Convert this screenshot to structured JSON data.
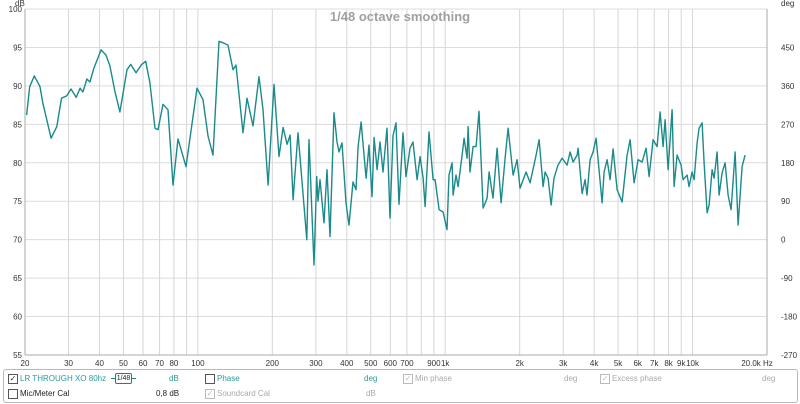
{
  "chart_data": {
    "type": "line",
    "title": "1/48 octave smoothing",
    "xlabel_unit": "Hz",
    "ylabel_left": "dB",
    "ylabel_right": "deg",
    "xscale": "log",
    "xlim": [
      20,
      20000
    ],
    "ylim": [
      55,
      100
    ],
    "ylim_right": [
      -270,
      540
    ],
    "grid": true,
    "y_ticks": [
      55,
      60,
      65,
      70,
      75,
      80,
      85,
      90,
      95,
      100
    ],
    "y_right_ticks": [
      450,
      360,
      270,
      180,
      90,
      0,
      -90,
      -180,
      -270
    ],
    "x_grid": [
      20,
      30,
      40,
      50,
      60,
      70,
      80,
      90,
      100,
      200,
      300,
      400,
      500,
      600,
      700,
      800,
      900,
      1000,
      2000,
      3000,
      4000,
      5000,
      6000,
      7000,
      8000,
      9000,
      10000,
      20000
    ],
    "x_tick_labels": [
      {
        "f": 20,
        "label": "20"
      },
      {
        "f": 30,
        "label": "30"
      },
      {
        "f": 40,
        "label": "40"
      },
      {
        "f": 50,
        "label": "50"
      },
      {
        "f": 60,
        "label": "60"
      },
      {
        "f": 70,
        "label": "70"
      },
      {
        "f": 80,
        "label": "80"
      },
      {
        "f": 100,
        "label": "100"
      },
      {
        "f": 200,
        "label": "200"
      },
      {
        "f": 300,
        "label": "300"
      },
      {
        "f": 400,
        "label": "400"
      },
      {
        "f": 500,
        "label": "500"
      },
      {
        "f": 600,
        "label": "600"
      },
      {
        "f": 700,
        "label": "700"
      },
      {
        "f": 900,
        "label": "900"
      },
      {
        "f": 1000,
        "label": "1k"
      },
      {
        "f": 2000,
        "label": "2k"
      },
      {
        "f": 3000,
        "label": "3k"
      },
      {
        "f": 4000,
        "label": "4k"
      },
      {
        "f": 5000,
        "label": "5k"
      },
      {
        "f": 6000,
        "label": "6k"
      },
      {
        "f": 7000,
        "label": "7k"
      },
      {
        "f": 8000,
        "label": "8k"
      },
      {
        "f": 9000,
        "label": "9k"
      },
      {
        "f": 10000,
        "label": "10k"
      },
      {
        "f": 20000,
        "label": "20,0k Hz"
      }
    ],
    "series": [
      {
        "name": "LR THROUGH XO 80hz",
        "color": "#1a8a8a",
        "x": [
          20.3,
          20.9,
          21.8,
          23.0,
          23.6,
          25.5,
          26.9,
          28.1,
          29.5,
          30.7,
          32.2,
          33.4,
          34.3,
          35.6,
          36.6,
          38.0,
          40.6,
          42.5,
          44.1,
          46.2,
          48.4,
          51.7,
          53.5,
          56.2,
          59.3,
          61.5,
          64.0,
          67.1,
          69.0,
          72.3,
          75.7,
          79.3,
          83.1,
          89.5,
          99.2,
          104.9,
          109.9,
          115.1,
          121.7,
          126.4,
          132.4,
          138.7,
          142.6,
          152.2,
          158.0,
          167.1,
          176.7,
          183.4,
          192.2,
          203.2,
          212.9,
          221.0,
          229.4,
          235.9,
          242.6,
          254.1,
          275.6,
          281.5,
          294.9,
          302.4,
          306.1,
          311.8,
          323.6,
          332.8,
          342.2,
          355.2,
          365.2,
          372.1,
          382.6,
          397.2,
          408.4,
          424.0,
          436.0,
          444.3,
          456.8,
          478.6,
          492.1,
          506.0,
          515.6,
          530.2,
          545.1,
          560.5,
          581.8,
          598.2,
          615.2,
          632.6,
          650.5,
          675.3,
          694.4,
          720.8,
          741.2,
          769.4,
          791.3,
          813.6,
          828.9,
          860.3,
          893.0,
          909.8,
          944.3,
          980.3,
          1017,
          1036,
          1066,
          1076,
          1106,
          1127,
          1170,
          1192,
          1226,
          1237,
          1260,
          1296,
          1333,
          1370,
          1423,
          1477,
          1504,
          1561,
          1621,
          1683,
          1747,
          1796,
          1881,
          1953,
          2007,
          2123,
          2204,
          2330,
          2396,
          2487,
          2534,
          2605,
          2679,
          2754,
          2859,
          2968,
          3110,
          3198,
          3288,
          3413,
          3445,
          3576,
          3677,
          3745,
          3852,
          3961,
          4073,
          4308,
          4389,
          4513,
          4641,
          4772,
          4954,
          5190,
          5437,
          5591,
          5803,
          6024,
          6253,
          6490,
          6674,
          6927,
          7190,
          7394,
          7603,
          7746,
          7965,
          8268,
          8423,
          8662,
          8991,
          9160,
          9508,
          9686,
          9960,
          10147,
          10434,
          10630,
          10931,
          11136,
          11451,
          11666,
          11997,
          12222,
          12567,
          12803,
          13166,
          13539,
          13922,
          14316,
          14860,
          15281,
          15859,
          16309
        ],
        "y": [
          86.2,
          89.9,
          91.3,
          89.9,
          87.8,
          83.2,
          84.7,
          88.4,
          88.7,
          89.6,
          88.5,
          89.7,
          89.2,
          90.9,
          90.5,
          92.3,
          94.7,
          94.0,
          92.6,
          89.3,
          86.6,
          92.1,
          92.8,
          91.7,
          92.8,
          93.2,
          90.4,
          84.5,
          84.3,
          87.6,
          86.9,
          77.1,
          83.1,
          79.5,
          89.7,
          88.2,
          83.5,
          81.0,
          95.8,
          95.6,
          95.3,
          92.1,
          92.7,
          83.9,
          88.4,
          84.8,
          91.2,
          86.9,
          77.1,
          90.2,
          80.8,
          84.6,
          82.4,
          83.6,
          75.2,
          83.9,
          70.0,
          83.0,
          66.7,
          78.2,
          75.0,
          77.8,
          72.2,
          79.1,
          70.4,
          86.5,
          82.7,
          81.4,
          82.6,
          74.8,
          71.9,
          77.5,
          76.5,
          82.1,
          85.3,
          78.0,
          82.3,
          75.6,
          83.3,
          79.1,
          82.7,
          78.8,
          84.5,
          72.8,
          83.5,
          85.2,
          74.6,
          83.9,
          78.2,
          81.9,
          82.7,
          77.8,
          80.8,
          78.0,
          74.3,
          84.0,
          77.8,
          77.8,
          73.9,
          73.6,
          71.3,
          78.4,
          80.0,
          75.8,
          78.4,
          76.9,
          81.0,
          83.2,
          80.6,
          84.7,
          78.8,
          82.1,
          82.1,
          86.7,
          74.1,
          75.4,
          78.8,
          75.4,
          81.9,
          74.8,
          80.6,
          84.5,
          78.4,
          80.4,
          76.7,
          78.8,
          77.4,
          81.0,
          83.0,
          76.9,
          78.8,
          78.0,
          74.5,
          78.0,
          79.7,
          80.6,
          79.7,
          81.4,
          80.1,
          81.0,
          81.9,
          76.0,
          77.8,
          75.8,
          80.4,
          81.4,
          83.2,
          74.8,
          78.8,
          80.4,
          77.8,
          81.8,
          76.5,
          74.9,
          81.0,
          83.0,
          77.4,
          80.4,
          80.1,
          81.9,
          78.2,
          83.0,
          82.1,
          86.6,
          82.1,
          85.6,
          79.1,
          86.9,
          76.9,
          81.0,
          79.7,
          77.8,
          78.4,
          76.9,
          78.8,
          77.8,
          82.6,
          84.5,
          85.2,
          80.0,
          73.5,
          74.5,
          79.1,
          78.0,
          81.4,
          75.8,
          78.7,
          80.0,
          75.8,
          73.9,
          81.4,
          71.9,
          79.5,
          81.0
        ]
      }
    ]
  },
  "panel": {
    "row1": {
      "measurement_label": "LR THROUGH XO 80hz",
      "measurement_checked": true,
      "smoothing": "1/48",
      "unit1": "dB",
      "phase_label": "Phase",
      "phase_checked": false,
      "unit2": "deg",
      "min_phase_label": "Min phase",
      "unit3": "deg",
      "excess_phase_label": "Excess phase",
      "unit4": "deg"
    },
    "row2": {
      "mic_cal_label": "Mic/Meter Cal",
      "mic_cal_checked": false,
      "mic_cal_value": "0,8 dB",
      "soundcard_cal_label": "Soundcard Cal",
      "unit": "dB"
    },
    "check_glyph": "✓"
  }
}
